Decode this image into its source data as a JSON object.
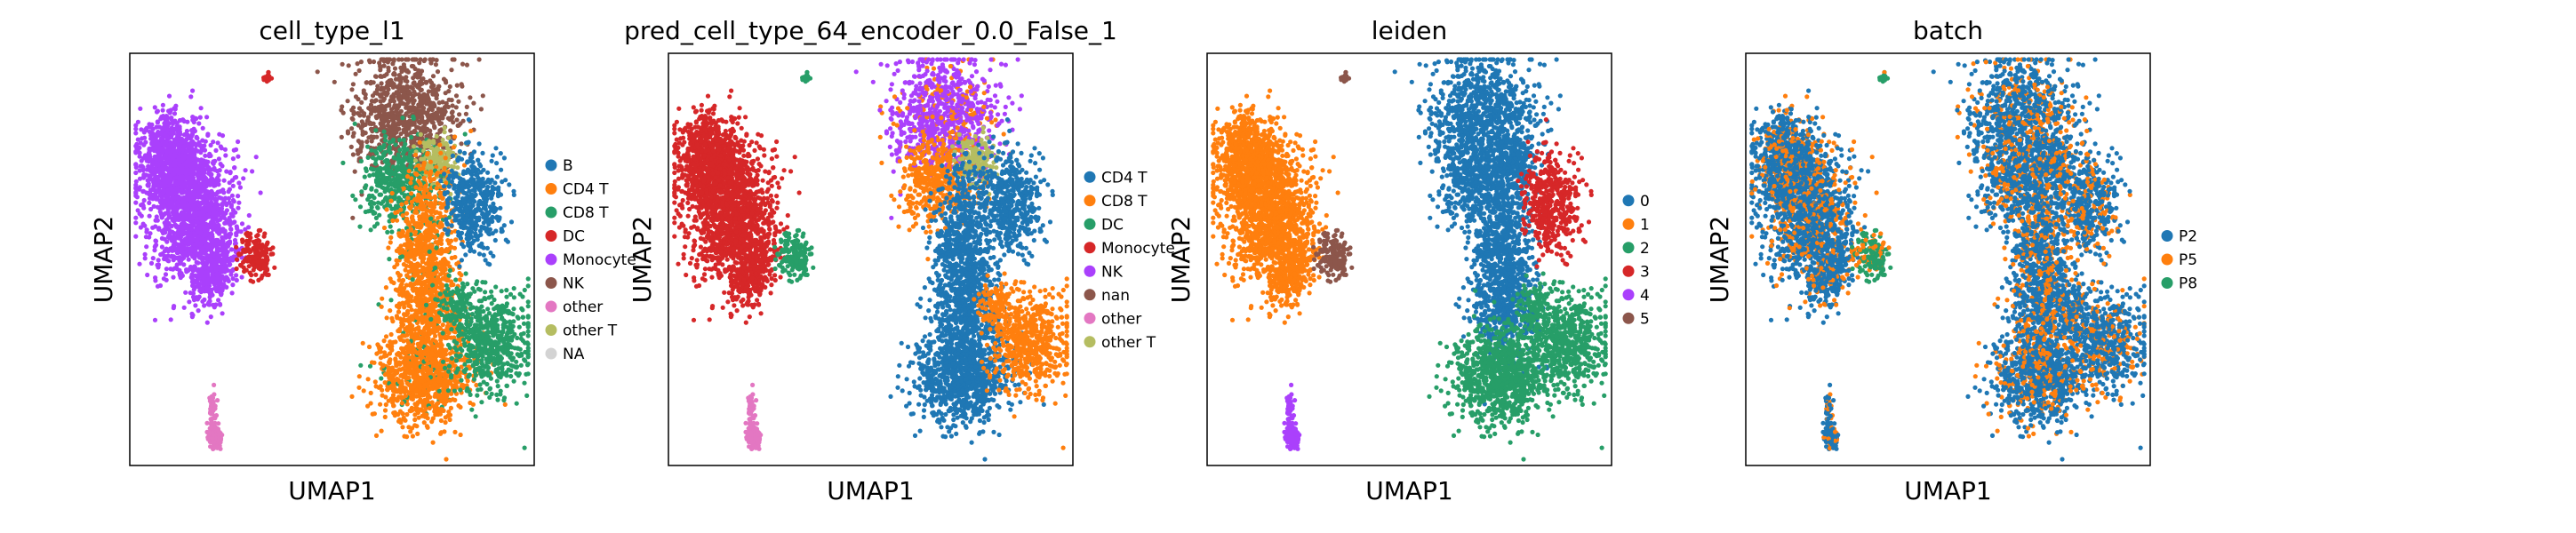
{
  "chart_data": [
    {
      "type": "scatter",
      "title": "cell_type_l1",
      "xlabel": "UMAP1",
      "ylabel": "UMAP2",
      "legend": [
        {
          "name": "B",
          "color": "#1f77b4"
        },
        {
          "name": "CD4 T",
          "color": "#ff7f0e"
        },
        {
          "name": "CD8 T",
          "color": "#279e68"
        },
        {
          "name": "DC",
          "color": "#d62728"
        },
        {
          "name": "Monocyte",
          "color": "#aa40fc"
        },
        {
          "name": "NK",
          "color": "#8c564b"
        },
        {
          "name": "other",
          "color": "#e377c2"
        },
        {
          "name": "other T",
          "color": "#b5bd61"
        },
        {
          "name": "NA",
          "color": "#d3d3d3"
        }
      ]
    },
    {
      "type": "scatter",
      "title": "pred_cell_type_64_encoder_0.0_False_1",
      "xlabel": "UMAP1",
      "ylabel": "UMAP2",
      "legend": [
        {
          "name": "CD4 T",
          "color": "#1f77b4"
        },
        {
          "name": "CD8 T",
          "color": "#ff7f0e"
        },
        {
          "name": "DC",
          "color": "#279e68"
        },
        {
          "name": "Monocyte",
          "color": "#d62728"
        },
        {
          "name": "NK",
          "color": "#aa40fc"
        },
        {
          "name": "nan",
          "color": "#8c564b"
        },
        {
          "name": "other",
          "color": "#e377c2"
        },
        {
          "name": "other T",
          "color": "#b5bd61"
        }
      ]
    },
    {
      "type": "scatter",
      "title": "leiden",
      "xlabel": "UMAP1",
      "ylabel": "UMAP2",
      "legend": [
        {
          "name": "0",
          "color": "#1f77b4"
        },
        {
          "name": "1",
          "color": "#ff7f0e"
        },
        {
          "name": "2",
          "color": "#279e68"
        },
        {
          "name": "3",
          "color": "#d62728"
        },
        {
          "name": "4",
          "color": "#aa40fc"
        },
        {
          "name": "5",
          "color": "#8c564b"
        }
      ]
    },
    {
      "type": "scatter",
      "title": "batch",
      "xlabel": "UMAP1",
      "ylabel": "UMAP2",
      "legend": [
        {
          "name": "P2",
          "color": "#1f77b4"
        },
        {
          "name": "P5",
          "color": "#ff7f0e"
        },
        {
          "name": "P8",
          "color": "#279e68"
        }
      ]
    }
  ]
}
